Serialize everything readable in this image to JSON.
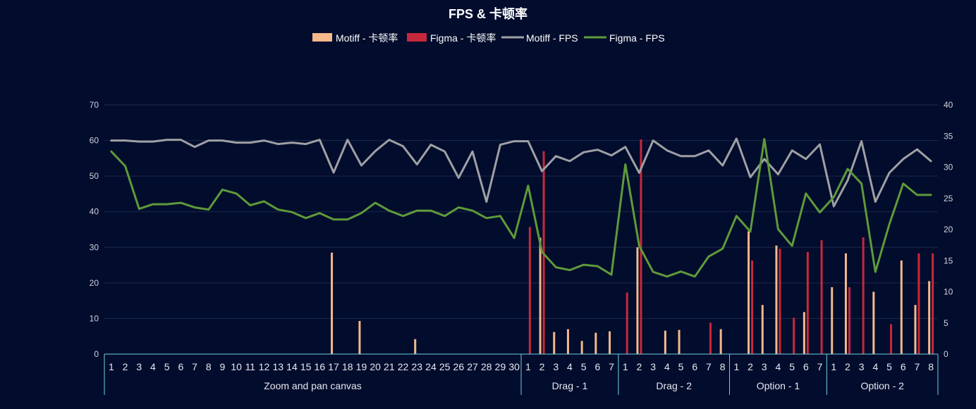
{
  "chart_data": {
    "type": "bar+line",
    "title": "FPS & 卡顿率",
    "y_left": {
      "min": 0,
      "max": 70,
      "ticks": [
        0,
        10,
        20,
        30,
        40,
        50,
        60,
        70
      ]
    },
    "y_right": {
      "min": 0,
      "max": 40,
      "ticks": [
        0,
        5,
        10,
        15,
        20,
        25,
        30,
        35,
        40
      ]
    },
    "grid": true,
    "legend_position": "top-center",
    "groups": [
      {
        "name": "Zoom and pan canvas",
        "ticks": [
          "1",
          "2",
          "3",
          "4",
          "5",
          "6",
          "7",
          "8",
          "9",
          "10",
          "11",
          "12",
          "13",
          "14",
          "15",
          "16",
          "17",
          "18",
          "19",
          "20",
          "21",
          "22",
          "23",
          "24",
          "25",
          "26",
          "27",
          "28",
          "29",
          "30"
        ]
      },
      {
        "name": "Drag - 1",
        "ticks": [
          "1",
          "2",
          "3",
          "4",
          "5",
          "6",
          "7"
        ]
      },
      {
        "name": "Drag - 2",
        "ticks": [
          "1",
          "2",
          "3",
          "4",
          "5",
          "6",
          "7",
          "8"
        ]
      },
      {
        "name": "Option - 1",
        "ticks": [
          "1",
          "2",
          "3",
          "4",
          "5",
          "6",
          "7"
        ]
      },
      {
        "name": "Option - 2",
        "ticks": [
          "1",
          "2",
          "3",
          "4",
          "5",
          "6",
          "7",
          "8"
        ]
      }
    ],
    "series": [
      {
        "name": "Motiff - 卡顿率",
        "kind": "bar",
        "axis": "left",
        "color": "#f5b98a",
        "values": [
          0,
          0,
          0,
          0,
          0,
          0,
          0,
          0,
          0,
          0,
          0,
          0,
          0,
          0,
          0,
          0,
          28.5,
          0,
          9.3,
          0,
          0,
          0,
          4.2,
          0,
          0,
          0,
          0,
          0,
          0,
          0,
          0,
          32.7,
          6.2,
          7.0,
          3.7,
          6.0,
          6.4,
          0,
          30,
          0,
          6.6,
          6.8,
          0,
          0,
          7.0,
          0,
          34.5,
          13.8,
          30.5,
          0,
          11.8,
          0,
          18.8,
          28.3,
          0,
          17.5,
          0,
          26.3,
          13.8,
          20.5
        ]
      },
      {
        "name": "Figma - 卡顿率",
        "kind": "bar",
        "axis": "left",
        "color": "#c8283c",
        "values": [
          0,
          0,
          0,
          0,
          0,
          0,
          0,
          0,
          0,
          0,
          0,
          0,
          0,
          0,
          0,
          0,
          0,
          0,
          0,
          0,
          0,
          0,
          0,
          0,
          0,
          0,
          0,
          0,
          0,
          0,
          35.7,
          57.0,
          0,
          0,
          0,
          0,
          0,
          17.3,
          60.3,
          0,
          0,
          0,
          0,
          8.8,
          0,
          0,
          26.3,
          0,
          29.6,
          10.2,
          28.7,
          32.0,
          0,
          18.8,
          32.8,
          0,
          8.4,
          0,
          28.3,
          28.3
        ]
      },
      {
        "name": "Motiff - FPS",
        "kind": "line",
        "axis": "left",
        "color": "#9fa0a4",
        "values": [
          60,
          60,
          59.7,
          59.7,
          60.2,
          60.2,
          58.2,
          60,
          60,
          59.4,
          59.4,
          60,
          59,
          59.4,
          59,
          60.2,
          51,
          60.2,
          53,
          57,
          60.2,
          58.4,
          53.3,
          58.8,
          56.9,
          49.5,
          56.9,
          42.8,
          58.8,
          59.8,
          59.8,
          51.4,
          55.6,
          54.2,
          56.7,
          57.4,
          55.8,
          58.2,
          50.9,
          60,
          57.2,
          55.6,
          55.6,
          57.2,
          53,
          60.5,
          49.7,
          54.8,
          50.5,
          57.2,
          54.8,
          58.9,
          41.5,
          48.8,
          59.8,
          42.8,
          50.9,
          54.8,
          57.5,
          54.2
        ]
      },
      {
        "name": "Figma - FPS",
        "kind": "line",
        "axis": "left",
        "color": "#5e9a3a",
        "values": [
          56.9,
          52.8,
          40.8,
          42.1,
          42.1,
          42.5,
          41.2,
          40.6,
          46.2,
          45.1,
          41.8,
          42.9,
          40.6,
          39.9,
          38.2,
          39.6,
          37.8,
          37.8,
          39.6,
          42.5,
          40.3,
          38.8,
          40.3,
          40.3,
          38.8,
          41.2,
          40.3,
          38.2,
          38.8,
          32.6,
          47.3,
          28.7,
          24.4,
          23.6,
          25.1,
          24.7,
          22.3,
          53.3,
          30.4,
          23.1,
          21.8,
          23.2,
          21.8,
          27.4,
          29.6,
          38.8,
          34.4,
          60.4,
          35.1,
          30.4,
          45.1,
          39.8,
          44.1,
          52,
          47.9,
          23.1,
          36.4,
          47.9,
          44.7,
          44.7
        ]
      }
    ]
  }
}
